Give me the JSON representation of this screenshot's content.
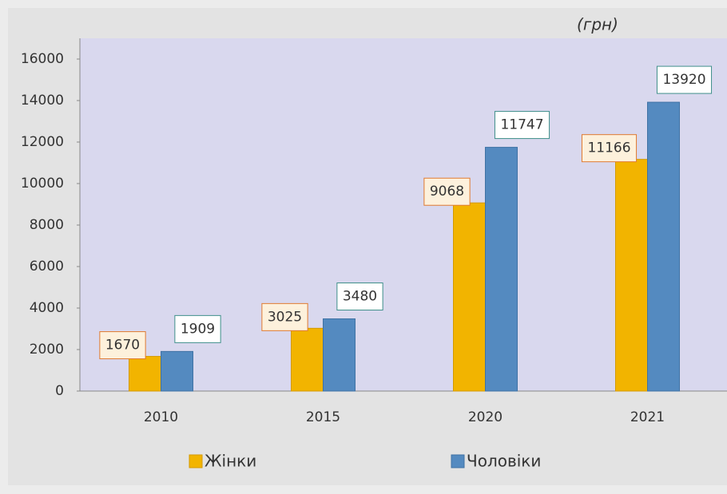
{
  "chart_data": {
    "type": "bar",
    "title": "(грн)",
    "categories": [
      "2010",
      "2015",
      "2020",
      "2021"
    ],
    "series": [
      {
        "name": "Жінки",
        "color": "#f2b400",
        "values": [
          1670,
          3025,
          9068,
          11166
        ]
      },
      {
        "name": "Чоловіки",
        "color": "#548ac0",
        "values": [
          1909,
          3480,
          11747,
          13920
        ]
      }
    ],
    "ylim": [
      0,
      17000
    ],
    "yticks": [
      0,
      2000,
      4000,
      6000,
      8000,
      10000,
      12000,
      14000,
      16000
    ],
    "legend": "bottom"
  }
}
